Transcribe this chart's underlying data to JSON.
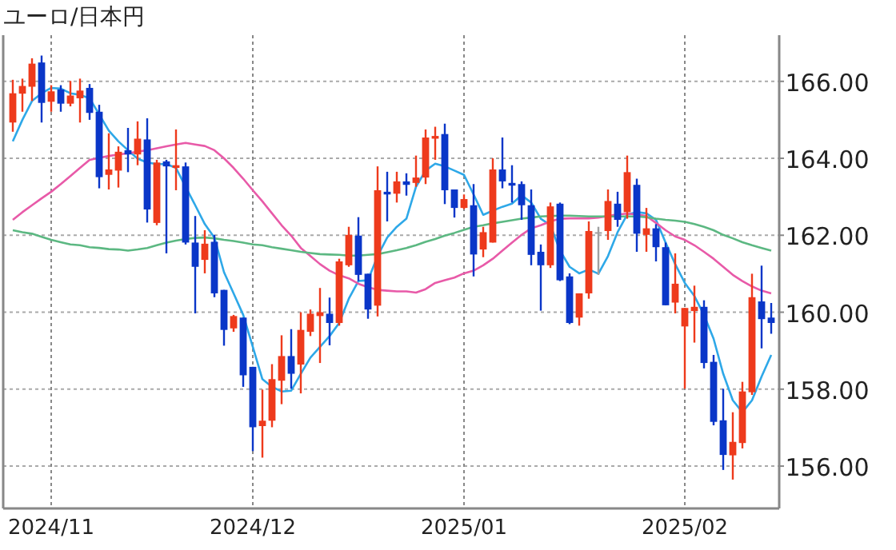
{
  "chart_data": {
    "type": "candlestick",
    "title": "ユーロ/日本円",
    "categories": [
      null,
      null,
      null,
      null,
      "2024/11",
      null,
      null,
      null,
      null,
      null,
      null,
      null,
      null,
      null,
      null,
      null,
      null,
      null,
      null,
      null,
      null,
      null,
      null,
      null,
      null,
      "2024/12",
      null,
      null,
      null,
      null,
      null,
      null,
      null,
      null,
      null,
      null,
      null,
      null,
      null,
      null,
      null,
      null,
      null,
      null,
      null,
      null,
      null,
      "2025/01",
      null,
      null,
      null,
      null,
      null,
      null,
      null,
      null,
      null,
      null,
      null,
      null,
      null,
      null,
      null,
      null,
      null,
      null,
      null,
      null,
      null,
      null,
      "2025/02",
      null,
      null,
      null,
      null,
      null,
      null,
      null,
      null,
      null
    ],
    "ohlc": [
      [
        164.93,
        166.04,
        164.69,
        165.69
      ],
      [
        165.68,
        166.07,
        165.21,
        165.88
      ],
      [
        165.86,
        166.6,
        165.49,
        166.46
      ],
      [
        166.49,
        166.67,
        164.93,
        165.44
      ],
      [
        165.47,
        165.9,
        165.21,
        165.74
      ],
      [
        165.79,
        165.9,
        165.21,
        165.42
      ],
      [
        165.42,
        166.01,
        165.35,
        165.63
      ],
      [
        165.56,
        166.07,
        164.93,
        165.76
      ],
      [
        165.83,
        165.93,
        165.0,
        165.18
      ],
      [
        165.21,
        165.39,
        163.22,
        163.51
      ],
      [
        163.57,
        164.65,
        163.19,
        163.71
      ],
      [
        163.68,
        164.31,
        163.24,
        164.17
      ],
      [
        164.21,
        164.79,
        163.64,
        164.1
      ],
      [
        164.1,
        164.96,
        163.82,
        164.51
      ],
      [
        164.49,
        165.04,
        162.33,
        162.67
      ],
      [
        162.32,
        163.96,
        162.26,
        163.89
      ],
      [
        163.92,
        163.96,
        161.53,
        163.79
      ],
      [
        163.75,
        164.75,
        163.17,
        163.82
      ],
      [
        163.79,
        163.89,
        161.76,
        161.81
      ],
      [
        161.81,
        162.5,
        159.97,
        161.18
      ],
      [
        161.36,
        162.13,
        161.01,
        161.78
      ],
      [
        161.83,
        162.01,
        160.39,
        160.49
      ],
      [
        160.58,
        160.58,
        159.13,
        159.54
      ],
      [
        159.58,
        159.93,
        159.49,
        159.9
      ],
      [
        159.86,
        159.86,
        158.06,
        158.36
      ],
      [
        158.58,
        158.58,
        156.39,
        157.01
      ],
      [
        157.04,
        157.99,
        156.22,
        157.18
      ],
      [
        157.18,
        158.65,
        157.01,
        158.26
      ],
      [
        158.22,
        159.4,
        157.61,
        158.86
      ],
      [
        158.86,
        159.56,
        158.01,
        158.4
      ],
      [
        158.64,
        160.0,
        157.89,
        159.54
      ],
      [
        159.49,
        160.07,
        159.38,
        159.96
      ],
      [
        159.9,
        160.63,
        158.68,
        160.0
      ],
      [
        159.96,
        160.38,
        159.14,
        159.72
      ],
      [
        159.72,
        161.39,
        159.65,
        161.32
      ],
      [
        161.22,
        162.22,
        161.18,
        162.01
      ],
      [
        161.99,
        162.47,
        160.81,
        160.97
      ],
      [
        161.0,
        161.0,
        159.83,
        160.07
      ],
      [
        160.17,
        163.79,
        159.89,
        163.17
      ],
      [
        163.13,
        163.65,
        162.36,
        163.06
      ],
      [
        163.08,
        163.65,
        162.85,
        163.4
      ],
      [
        163.4,
        163.61,
        163.03,
        163.31
      ],
      [
        163.36,
        164.07,
        163.26,
        163.5
      ],
      [
        163.5,
        164.75,
        163.33,
        164.54
      ],
      [
        164.51,
        164.82,
        163.96,
        164.58
      ],
      [
        164.63,
        164.9,
        162.81,
        163.17
      ],
      [
        163.19,
        163.19,
        162.46,
        162.71
      ],
      [
        162.71,
        163.06,
        162.68,
        162.94
      ],
      [
        162.78,
        163.33,
        160.93,
        161.5
      ],
      [
        161.63,
        162.22,
        161.43,
        162.08
      ],
      [
        161.81,
        164.0,
        161.81,
        163.71
      ],
      [
        163.71,
        164.54,
        163.22,
        163.4
      ],
      [
        163.36,
        163.82,
        162.85,
        163.29
      ],
      [
        163.33,
        163.4,
        162.4,
        162.78
      ],
      [
        162.78,
        163.19,
        161.22,
        161.49
      ],
      [
        161.57,
        161.76,
        160.04,
        161.22
      ],
      [
        161.22,
        162.85,
        161.15,
        162.75
      ],
      [
        162.82,
        162.85,
        160.81,
        160.83
      ],
      [
        160.93,
        161.01,
        159.69,
        159.72
      ],
      [
        159.86,
        160.49,
        159.65,
        160.49
      ],
      [
        160.49,
        162.36,
        160.35,
        162.11
      ],
      [
        162.08,
        162.22,
        160.97,
        162.08
      ],
      [
        162.11,
        163.19,
        161.88,
        162.89
      ],
      [
        162.82,
        163.13,
        162.22,
        162.4
      ],
      [
        162.6,
        164.07,
        162.43,
        163.64
      ],
      [
        163.31,
        163.47,
        161.57,
        162.04
      ],
      [
        162.01,
        162.71,
        161.57,
        162.18
      ],
      [
        162.18,
        162.29,
        161.32,
        161.69
      ],
      [
        161.69,
        161.81,
        160.18,
        160.18
      ],
      [
        160.25,
        161.53,
        159.97,
        160.74
      ],
      [
        159.63,
        160.11,
        158.01,
        160.11
      ],
      [
        160.03,
        160.69,
        159.21,
        160.14
      ],
      [
        160.14,
        160.31,
        158.54,
        158.68
      ],
      [
        158.71,
        158.89,
        157.06,
        157.15
      ],
      [
        157.19,
        158.01,
        155.9,
        156.29
      ],
      [
        156.28,
        157.4,
        155.65,
        156.63
      ],
      [
        156.6,
        158.19,
        156.46,
        157.94
      ],
      [
        157.92,
        161.0,
        157.85,
        160.39
      ],
      [
        160.28,
        161.21,
        159.06,
        159.82
      ],
      [
        159.86,
        160.24,
        159.44,
        159.72
      ]
    ],
    "colors": [
      "#ee3a1c",
      "#ee3a1c",
      "#ee3a1c",
      "#0a36c8",
      "#ee3a1c",
      "#0a36c8",
      "#ee3a1c",
      "#ee3a1c",
      "#0a36c8",
      "#0a36c8",
      "#ee3a1c",
      "#ee3a1c",
      "#0a36c8",
      "#ee3a1c",
      "#0a36c8",
      "#ee3a1c",
      "#0a36c8",
      "#ee3a1c",
      "#0a36c8",
      "#0a36c8",
      "#ee3a1c",
      "#0a36c8",
      "#0a36c8",
      "#ee3a1c",
      "#0a36c8",
      "#0a36c8",
      "#ee3a1c",
      "#ee3a1c",
      "#ee3a1c",
      "#0a36c8",
      "#ee3a1c",
      "#ee3a1c",
      "#ee3a1c",
      "#0a36c8",
      "#ee3a1c",
      "#ee3a1c",
      "#0a36c8",
      "#0a36c8",
      "#ee3a1c",
      "#0a36c8",
      "#ee3a1c",
      "#0a36c8",
      "#ee3a1c",
      "#ee3a1c",
      "#ee3a1c",
      "#0a36c8",
      "#0a36c8",
      "#ee3a1c",
      "#0a36c8",
      "#ee3a1c",
      "#ee3a1c",
      "#0a36c8",
      "#0a36c8",
      "#0a36c8",
      "#0a36c8",
      "#0a36c8",
      "#ee3a1c",
      "#0a36c8",
      "#0a36c8",
      "#ee3a1c",
      "#ee3a1c",
      "#a0a0a0",
      "#ee3a1c",
      "#0a36c8",
      "#ee3a1c",
      "#0a36c8",
      "#ee3a1c",
      "#0a36c8",
      "#0a36c8",
      "#ee3a1c",
      "#ee3a1c",
      "#ee3a1c",
      "#0a36c8",
      "#0a36c8",
      "#0a36c8",
      "#ee3a1c",
      "#ee3a1c",
      "#ee3a1c",
      "#0a36c8",
      "#0a36c8"
    ],
    "series": [
      {
        "type": "line",
        "color": "#2ea8e8",
        "values": [
          164.44,
          165.0,
          165.49,
          165.69,
          165.83,
          165.81,
          165.69,
          165.65,
          165.56,
          165.14,
          164.72,
          164.44,
          164.21,
          163.99,
          163.89,
          163.85,
          163.85,
          163.75,
          163.26,
          162.78,
          162.29,
          161.94,
          161.04,
          160.49,
          159.93,
          159.1,
          158.26,
          158.06,
          157.94,
          157.96,
          158.4,
          158.82,
          159.1,
          159.38,
          159.72,
          160.35,
          160.81,
          160.83,
          161.46,
          161.94,
          162.22,
          162.43,
          163.26,
          163.68,
          163.86,
          163.79,
          163.68,
          163.57,
          163.06,
          162.53,
          162.64,
          162.74,
          162.82,
          163.04,
          162.85,
          162.43,
          162.26,
          161.6,
          161.18,
          161.01,
          161.11,
          161.0,
          161.46,
          162.08,
          162.54,
          162.6,
          162.57,
          162.4,
          161.81,
          161.25,
          160.76,
          160.42,
          159.93,
          159.31,
          158.4,
          157.71,
          157.4,
          157.71,
          158.33,
          158.89
        ]
      },
      {
        "type": "line",
        "color": "#e85aa8",
        "values": [
          162.4,
          162.6,
          162.78,
          162.96,
          163.13,
          163.33,
          163.54,
          163.75,
          163.96,
          164.01,
          164.06,
          164.1,
          164.13,
          164.17,
          164.21,
          164.26,
          164.31,
          164.36,
          164.4,
          164.36,
          164.32,
          164.21,
          164.0,
          163.75,
          163.47,
          163.17,
          162.88,
          162.57,
          162.26,
          161.99,
          161.67,
          161.46,
          161.25,
          161.08,
          160.96,
          160.88,
          160.74,
          160.65,
          160.58,
          160.56,
          160.54,
          160.54,
          160.51,
          160.6,
          160.76,
          160.83,
          160.9,
          161.01,
          161.08,
          161.22,
          161.39,
          161.6,
          161.81,
          162.01,
          162.18,
          162.26,
          162.36,
          162.43,
          162.44,
          162.44,
          162.44,
          162.46,
          162.5,
          162.54,
          162.56,
          162.54,
          162.5,
          162.32,
          162.13,
          161.97,
          161.88,
          161.74,
          161.57,
          161.39,
          161.18,
          160.97,
          160.81,
          160.67,
          160.56,
          160.49
        ]
      },
      {
        "type": "line",
        "color": "#5cb882",
        "values": [
          162.13,
          162.08,
          162.04,
          161.96,
          161.88,
          161.82,
          161.76,
          161.74,
          161.69,
          161.67,
          161.64,
          161.63,
          161.6,
          161.63,
          161.67,
          161.74,
          161.81,
          161.86,
          161.9,
          161.93,
          161.94,
          161.92,
          161.88,
          161.85,
          161.81,
          161.76,
          161.74,
          161.69,
          161.65,
          161.61,
          161.57,
          161.54,
          161.51,
          161.5,
          161.49,
          161.47,
          161.47,
          161.49,
          161.51,
          161.56,
          161.61,
          161.67,
          161.74,
          161.83,
          161.9,
          161.99,
          162.06,
          162.14,
          162.22,
          162.26,
          162.31,
          162.35,
          162.39,
          162.43,
          162.46,
          162.49,
          162.5,
          162.51,
          162.51,
          162.5,
          162.49,
          162.49,
          162.49,
          162.49,
          162.49,
          162.49,
          162.47,
          162.43,
          162.4,
          162.38,
          162.35,
          162.29,
          162.22,
          162.13,
          162.01,
          161.92,
          161.82,
          161.74,
          161.67,
          161.6
        ]
      }
    ],
    "ylim": [
      154.9,
      167.2
    ],
    "yticks": [
      {
        "value": 156,
        "label": "156.00"
      },
      {
        "value": 158,
        "label": "158.00"
      },
      {
        "value": 160,
        "label": "160.00"
      },
      {
        "value": 162,
        "label": "162.00"
      },
      {
        "value": 164,
        "label": "164.00"
      },
      {
        "value": 166,
        "label": "166.00"
      }
    ],
    "grid": true
  }
}
